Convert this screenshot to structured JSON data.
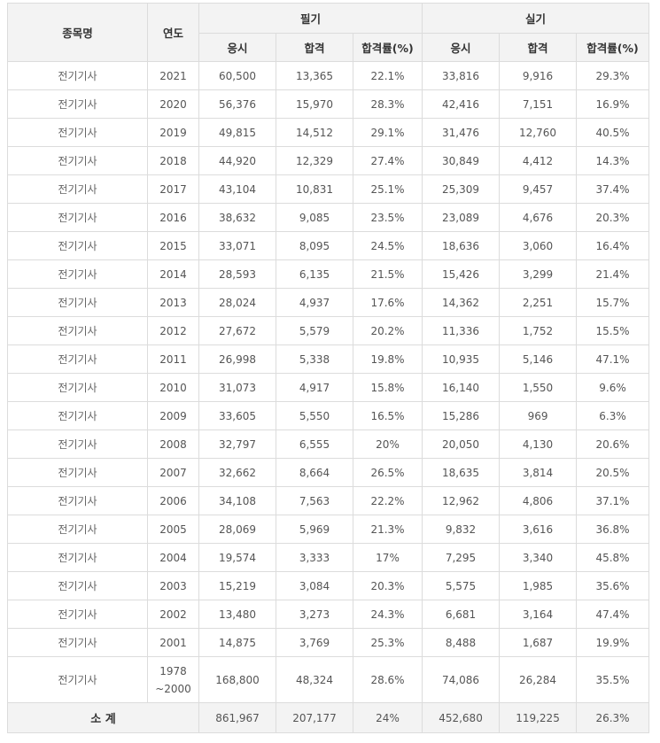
{
  "headers": {
    "name": "종목명",
    "year": "연도",
    "written": "필기",
    "practical": "실기",
    "applicants": "응시",
    "passed": "합격",
    "rate": "합격률(%)"
  },
  "rows": [
    {
      "name": "전기기사",
      "year": "2021",
      "w_app": "60,500",
      "w_pass": "13,365",
      "w_rate": "22.1%",
      "p_app": "33,816",
      "p_pass": "9,916",
      "p_rate": "29.3%"
    },
    {
      "name": "전기기사",
      "year": "2020",
      "w_app": "56,376",
      "w_pass": "15,970",
      "w_rate": "28.3%",
      "p_app": "42,416",
      "p_pass": "7,151",
      "p_rate": "16.9%"
    },
    {
      "name": "전기기사",
      "year": "2019",
      "w_app": "49,815",
      "w_pass": "14,512",
      "w_rate": "29.1%",
      "p_app": "31,476",
      "p_pass": "12,760",
      "p_rate": "40.5%"
    },
    {
      "name": "전기기사",
      "year": "2018",
      "w_app": "44,920",
      "w_pass": "12,329",
      "w_rate": "27.4%",
      "p_app": "30,849",
      "p_pass": "4,412",
      "p_rate": "14.3%"
    },
    {
      "name": "전기기사",
      "year": "2017",
      "w_app": "43,104",
      "w_pass": "10,831",
      "w_rate": "25.1%",
      "p_app": "25,309",
      "p_pass": "9,457",
      "p_rate": "37.4%"
    },
    {
      "name": "전기기사",
      "year": "2016",
      "w_app": "38,632",
      "w_pass": "9,085",
      "w_rate": "23.5%",
      "p_app": "23,089",
      "p_pass": "4,676",
      "p_rate": "20.3%"
    },
    {
      "name": "전기기사",
      "year": "2015",
      "w_app": "33,071",
      "w_pass": "8,095",
      "w_rate": "24.5%",
      "p_app": "18,636",
      "p_pass": "3,060",
      "p_rate": "16.4%"
    },
    {
      "name": "전기기사",
      "year": "2014",
      "w_app": "28,593",
      "w_pass": "6,135",
      "w_rate": "21.5%",
      "p_app": "15,426",
      "p_pass": "3,299",
      "p_rate": "21.4%"
    },
    {
      "name": "전기기사",
      "year": "2013",
      "w_app": "28,024",
      "w_pass": "4,937",
      "w_rate": "17.6%",
      "p_app": "14,362",
      "p_pass": "2,251",
      "p_rate": "15.7%"
    },
    {
      "name": "전기기사",
      "year": "2012",
      "w_app": "27,672",
      "w_pass": "5,579",
      "w_rate": "20.2%",
      "p_app": "11,336",
      "p_pass": "1,752",
      "p_rate": "15.5%"
    },
    {
      "name": "전기기사",
      "year": "2011",
      "w_app": "26,998",
      "w_pass": "5,338",
      "w_rate": "19.8%",
      "p_app": "10,935",
      "p_pass": "5,146",
      "p_rate": "47.1%"
    },
    {
      "name": "전기기사",
      "year": "2010",
      "w_app": "31,073",
      "w_pass": "4,917",
      "w_rate": "15.8%",
      "p_app": "16,140",
      "p_pass": "1,550",
      "p_rate": "9.6%"
    },
    {
      "name": "전기기사",
      "year": "2009",
      "w_app": "33,605",
      "w_pass": "5,550",
      "w_rate": "16.5%",
      "p_app": "15,286",
      "p_pass": "969",
      "p_rate": "6.3%"
    },
    {
      "name": "전기기사",
      "year": "2008",
      "w_app": "32,797",
      "w_pass": "6,555",
      "w_rate": "20%",
      "p_app": "20,050",
      "p_pass": "4,130",
      "p_rate": "20.6%"
    },
    {
      "name": "전기기사",
      "year": "2007",
      "w_app": "32,662",
      "w_pass": "8,664",
      "w_rate": "26.5%",
      "p_app": "18,635",
      "p_pass": "3,814",
      "p_rate": "20.5%"
    },
    {
      "name": "전기기사",
      "year": "2006",
      "w_app": "34,108",
      "w_pass": "7,563",
      "w_rate": "22.2%",
      "p_app": "12,962",
      "p_pass": "4,806",
      "p_rate": "37.1%"
    },
    {
      "name": "전기기사",
      "year": "2005",
      "w_app": "28,069",
      "w_pass": "5,969",
      "w_rate": "21.3%",
      "p_app": "9,832",
      "p_pass": "3,616",
      "p_rate": "36.8%"
    },
    {
      "name": "전기기사",
      "year": "2004",
      "w_app": "19,574",
      "w_pass": "3,333",
      "w_rate": "17%",
      "p_app": "7,295",
      "p_pass": "3,340",
      "p_rate": "45.8%"
    },
    {
      "name": "전기기사",
      "year": "2003",
      "w_app": "15,219",
      "w_pass": "3,084",
      "w_rate": "20.3%",
      "p_app": "5,575",
      "p_pass": "1,985",
      "p_rate": "35.6%"
    },
    {
      "name": "전기기사",
      "year": "2002",
      "w_app": "13,480",
      "w_pass": "3,273",
      "w_rate": "24.3%",
      "p_app": "6,681",
      "p_pass": "3,164",
      "p_rate": "47.4%"
    },
    {
      "name": "전기기사",
      "year": "2001",
      "w_app": "14,875",
      "w_pass": "3,769",
      "w_rate": "25.3%",
      "p_app": "8,488",
      "p_pass": "1,687",
      "p_rate": "19.9%"
    },
    {
      "name": "전기기사",
      "year": "1978\n~2000",
      "w_app": "168,800",
      "w_pass": "48,324",
      "w_rate": "28.6%",
      "p_app": "74,086",
      "p_pass": "26,284",
      "p_rate": "35.5%"
    }
  ],
  "total": {
    "label": "소 계",
    "w_app": "861,967",
    "w_pass": "207,177",
    "w_rate": "24%",
    "p_app": "452,680",
    "p_pass": "119,225",
    "p_rate": "26.3%"
  }
}
